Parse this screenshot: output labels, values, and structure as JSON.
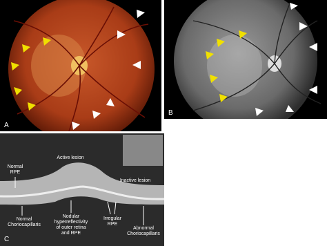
{
  "panels": {
    "a": {
      "label": "A"
    },
    "b": {
      "label": "B"
    },
    "c": {
      "label": "C"
    }
  },
  "oct_labels": [
    {
      "lines": [
        "Active lesion"
      ]
    },
    {
      "lines": [
        "Normal",
        "RPE"
      ]
    },
    {
      "lines": [
        "Inactive lesion"
      ]
    },
    {
      "lines": [
        "Normal",
        "Choriocapillaris"
      ]
    },
    {
      "lines": [
        "Nodular",
        "hyperreflectivity",
        "of outer retina",
        "and RPE"
      ]
    },
    {
      "lines": [
        "Irregular",
        "RPE"
      ]
    },
    {
      "lines": [
        "Abnormal",
        "Choriocapillaris"
      ]
    }
  ]
}
